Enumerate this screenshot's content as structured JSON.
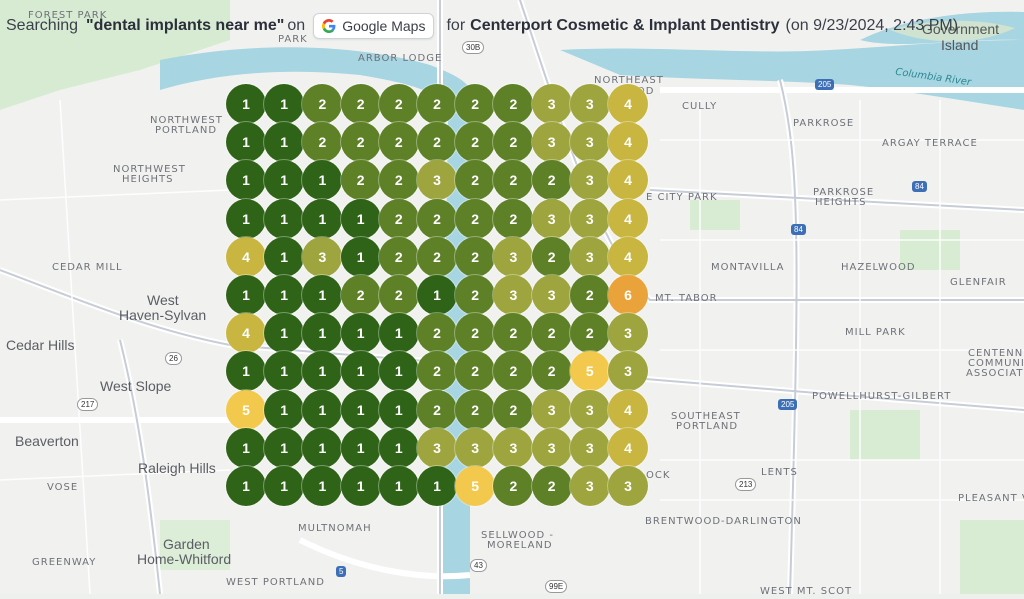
{
  "header": {
    "prefix": "Searching",
    "keyword": "\"dental implants near me\"",
    "on": "on",
    "platform": "Google Maps",
    "for": "for",
    "business": "Centerport Cosmetic & Implant Dentistry",
    "date": "(on 9/23/2024, 2:43 PM)"
  },
  "rank_colors": {
    "1": "#2f6418",
    "2": "#5e8128",
    "3": "#9ea53f",
    "4": "#c8b640",
    "5": "#f2c94c",
    "6": "#e9a33a"
  },
  "rank_grid": [
    [
      1,
      1,
      2,
      2,
      2,
      2,
      2,
      2,
      3,
      3,
      4
    ],
    [
      1,
      1,
      2,
      2,
      2,
      2,
      2,
      2,
      3,
      3,
      4
    ],
    [
      1,
      1,
      1,
      2,
      2,
      3,
      2,
      2,
      2,
      3,
      4
    ],
    [
      1,
      1,
      1,
      1,
      2,
      2,
      2,
      2,
      3,
      3,
      4
    ],
    [
      4,
      1,
      3,
      1,
      2,
      2,
      2,
      3,
      2,
      3,
      4
    ],
    [
      1,
      1,
      1,
      2,
      2,
      1,
      2,
      3,
      3,
      2,
      6
    ],
    [
      4,
      1,
      1,
      1,
      1,
      2,
      2,
      2,
      2,
      2,
      3
    ],
    [
      1,
      1,
      1,
      1,
      1,
      2,
      2,
      2,
      2,
      5,
      3
    ],
    [
      5,
      1,
      1,
      1,
      1,
      2,
      2,
      2,
      3,
      3,
      4
    ],
    [
      1,
      1,
      1,
      1,
      1,
      3,
      3,
      3,
      3,
      3,
      4
    ],
    [
      1,
      1,
      1,
      1,
      1,
      1,
      5,
      2,
      2,
      3,
      3
    ]
  ],
  "map_labels": {
    "forest_park": "FOREST PARK",
    "park": "PARK",
    "arbor_lodge": "ARBOR LODGE",
    "northeast": "NORTHEAST",
    "noerood": "OOD",
    "government_island": "Government",
    "island": "Island",
    "columbia_river": "Columbia River",
    "cully": "CULLY",
    "parkrose": "PARKROSE",
    "northwest": "NORTHWEST",
    "portland_nw": "PORTLAND",
    "argay": "ARGAY TERRACE",
    "northwest2": "NORTHWEST",
    "heights": "HEIGHTS",
    "city_park": "E CITY PARK",
    "parkrose2": "PARKROSE",
    "heights2": "HEIGHTS",
    "cedar_mill": "CEDAR MILL",
    "montavilla": "MONTAVILLA",
    "hazelwood": "HAZELWOOD",
    "west": "West",
    "haven": "Haven-Sylvan",
    "glenfair": "GLENFAIR",
    "mt_tabor": "MT. TABOR",
    "cedar_hills": "Cedar Hills",
    "mill_park": "MILL PARK",
    "west_slope": "West Slope",
    "centennial1": "CENTENNIAL",
    "centennial2": "COMMUNITY",
    "centennial3": "ASSOCIATIO",
    "beaverton": "Beaverton",
    "southeast": "SOUTHEAST",
    "portland_se": "PORTLAND",
    "powellhurst": "POWELLHURST-GILBERT",
    "raleigh": "Raleigh Hills",
    "lents": "LENTS",
    "vose": "VOSE",
    "ock": "OCK",
    "pleasant_val": "PLEASANT VAL",
    "multnomah": "MULTNOMAH",
    "brentwood": "BRENTWOOD-DARLINGTON",
    "sellwood1": "SELLWOOD -",
    "sellwood2": "MORELAND",
    "garden": "Garden",
    "home_whitford": "Home-Whitford",
    "greenway": "GREENWAY",
    "west_portland": "WEST PORTLAND",
    "west_mt_scott": "WEST MT. SCOT"
  },
  "shields": {
    "s30b": "30B",
    "s205a": "205",
    "s84a": "84",
    "s84b": "84",
    "s26": "26",
    "s217": "217",
    "s205b": "205",
    "s213": "213",
    "s5": "5",
    "s43": "43",
    "s99e": "99E"
  }
}
